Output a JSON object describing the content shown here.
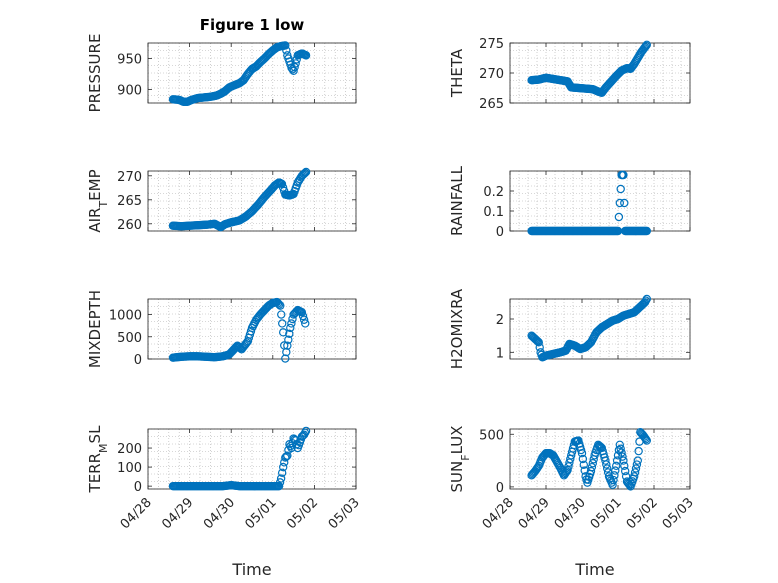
{
  "colors": {
    "marker": "#0072BD",
    "grid": "#b0b0b0",
    "axis": "#262626"
  },
  "figure_title": "Figure 1 low",
  "x_axis_title": "Time",
  "chart_data": [
    {
      "type": "scatter",
      "ylabel": "PRESSURE",
      "ylim": [
        878,
        975
      ],
      "yticks": [
        "900",
        "950"
      ],
      "ytick_values": [
        900,
        950
      ],
      "xlim": [
        "04/28",
        "05/03"
      ],
      "xticks": [
        "04/28",
        "04/29",
        "04/30",
        "05/01",
        "05/02",
        "05/03"
      ],
      "grid": true,
      "points": [
        [
          0.6,
          884
        ],
        [
          0.75,
          883
        ],
        [
          0.85,
          880
        ],
        [
          0.95,
          880
        ],
        [
          1.05,
          883
        ],
        [
          1.2,
          886
        ],
        [
          1.35,
          887
        ],
        [
          1.5,
          888
        ],
        [
          1.65,
          890
        ],
        [
          1.75,
          893
        ],
        [
          1.85,
          897
        ],
        [
          1.95,
          903
        ],
        [
          2.05,
          906
        ],
        [
          2.2,
          910
        ],
        [
          2.3,
          915
        ],
        [
          2.4,
          925
        ],
        [
          2.5,
          933
        ],
        [
          2.6,
          937
        ],
        [
          2.7,
          944
        ],
        [
          2.8,
          950
        ],
        [
          2.9,
          957
        ],
        [
          3.0,
          963
        ],
        [
          3.1,
          968
        ],
        [
          3.2,
          970
        ],
        [
          3.3,
          971
        ],
        [
          3.35,
          955
        ],
        [
          3.4,
          945
        ],
        [
          3.45,
          935
        ],
        [
          3.5,
          930
        ],
        [
          3.55,
          942
        ],
        [
          3.6,
          955
        ],
        [
          3.7,
          958
        ],
        [
          3.8,
          955
        ]
      ]
    },
    {
      "type": "scatter",
      "ylabel": "THETA",
      "ylim": [
        265,
        275
      ],
      "yticks": [
        "265",
        "270",
        "275"
      ],
      "ytick_values": [
        265,
        270,
        275
      ],
      "xlim": [
        "04/28",
        "05/03"
      ],
      "xticks": [
        "04/28",
        "04/29",
        "04/30",
        "05/01",
        "05/02",
        "05/03"
      ],
      "grid": true,
      "points": [
        [
          0.6,
          268.8
        ],
        [
          0.8,
          268.9
        ],
        [
          1.0,
          269.2
        ],
        [
          1.2,
          269.0
        ],
        [
          1.4,
          268.8
        ],
        [
          1.6,
          268.6
        ],
        [
          1.7,
          267.6
        ],
        [
          1.9,
          267.5
        ],
        [
          2.1,
          267.4
        ],
        [
          2.3,
          267.3
        ],
        [
          2.45,
          266.9
        ],
        [
          2.55,
          266.7
        ],
        [
          2.65,
          267.5
        ],
        [
          2.8,
          268.5
        ],
        [
          2.95,
          269.5
        ],
        [
          3.1,
          270.4
        ],
        [
          3.25,
          270.8
        ],
        [
          3.35,
          270.7
        ],
        [
          3.45,
          271.5
        ],
        [
          3.55,
          272.5
        ],
        [
          3.65,
          273.5
        ],
        [
          3.75,
          274.3
        ],
        [
          3.8,
          274.7
        ]
      ]
    },
    {
      "type": "scatter",
      "ylabel": "AIR_TEMP",
      "ylim": [
        258.5,
        271
      ],
      "yticks": [
        "260",
        "265",
        "270"
      ],
      "ytick_values": [
        260,
        265,
        270
      ],
      "xlim": [
        "04/28",
        "05/03"
      ],
      "xticks": [
        "04/28",
        "04/29",
        "04/30",
        "05/01",
        "05/02",
        "05/03"
      ],
      "grid": true,
      "points": [
        [
          0.6,
          259.6
        ],
        [
          0.8,
          259.5
        ],
        [
          1.0,
          259.6
        ],
        [
          1.2,
          259.7
        ],
        [
          1.4,
          259.8
        ],
        [
          1.6,
          260.0
        ],
        [
          1.75,
          259.3
        ],
        [
          1.85,
          259.9
        ],
        [
          2.0,
          260.3
        ],
        [
          2.2,
          260.7
        ],
        [
          2.35,
          261.5
        ],
        [
          2.5,
          262.6
        ],
        [
          2.65,
          264.0
        ],
        [
          2.8,
          265.6
        ],
        [
          2.95,
          267.0
        ],
        [
          3.05,
          268.0
        ],
        [
          3.15,
          268.6
        ],
        [
          3.22,
          268.3
        ],
        [
          3.3,
          266.1
        ],
        [
          3.4,
          265.9
        ],
        [
          3.5,
          266.2
        ],
        [
          3.6,
          268.6
        ],
        [
          3.7,
          270.0
        ],
        [
          3.8,
          270.8
        ]
      ]
    },
    {
      "type": "scatter",
      "ylabel": "RAINFALL",
      "ylim": [
        0,
        0.3
      ],
      "yticks": [
        "0",
        "0.1",
        "0.2"
      ],
      "ytick_values": [
        0,
        0.1,
        0.2
      ],
      "xlim": [
        "04/28",
        "05/03"
      ],
      "xticks": [
        "04/28",
        "04/29",
        "04/30",
        "05/01",
        "05/02",
        "05/03"
      ],
      "grid": true,
      "points": [
        [
          0.6,
          0
        ],
        [
          0.8,
          0
        ],
        [
          1.0,
          0
        ],
        [
          1.2,
          0
        ],
        [
          1.4,
          0
        ],
        [
          1.6,
          0
        ],
        [
          1.8,
          0
        ],
        [
          2.0,
          0
        ],
        [
          2.2,
          0
        ],
        [
          2.4,
          0
        ],
        [
          2.6,
          0
        ],
        [
          2.8,
          0
        ],
        [
          3.0,
          0
        ],
        [
          3.1,
          0.28
        ],
        [
          3.15,
          0.28
        ],
        [
          3.2,
          0
        ],
        [
          3.4,
          0
        ],
        [
          3.6,
          0
        ],
        [
          3.8,
          0
        ]
      ]
    },
    {
      "type": "scatter",
      "ylabel": "MIXDEPTH",
      "ylim": [
        0,
        1350
      ],
      "yticks": [
        "0",
        "500",
        "1000"
      ],
      "ytick_values": [
        0,
        500,
        1000
      ],
      "xlim": [
        "04/28",
        "05/03"
      ],
      "xticks": [
        "04/28",
        "04/29",
        "04/30",
        "05/01",
        "05/02",
        "05/03"
      ],
      "grid": true,
      "points": [
        [
          0.6,
          30
        ],
        [
          0.8,
          50
        ],
        [
          1.0,
          60
        ],
        [
          1.2,
          60
        ],
        [
          1.4,
          50
        ],
        [
          1.6,
          40
        ],
        [
          1.8,
          60
        ],
        [
          1.95,
          100
        ],
        [
          2.05,
          200
        ],
        [
          2.15,
          300
        ],
        [
          2.25,
          220
        ],
        [
          2.4,
          400
        ],
        [
          2.5,
          700
        ],
        [
          2.6,
          880
        ],
        [
          2.7,
          1000
        ],
        [
          2.8,
          1100
        ],
        [
          2.9,
          1200
        ],
        [
          3.0,
          1260
        ],
        [
          3.1,
          1280
        ],
        [
          3.18,
          1200
        ],
        [
          3.25,
          600
        ],
        [
          3.3,
          10
        ],
        [
          3.35,
          300
        ],
        [
          3.42,
          700
        ],
        [
          3.5,
          1000
        ],
        [
          3.6,
          1100
        ],
        [
          3.7,
          1050
        ],
        [
          3.78,
          800
        ]
      ]
    },
    {
      "type": "scatter",
      "ylabel": "H2OMIXRA",
      "ylim": [
        0.8,
        2.6
      ],
      "yticks": [
        "1",
        "2"
      ],
      "ytick_values": [
        1,
        2
      ],
      "xlim": [
        "04/28",
        "05/03"
      ],
      "xticks": [
        "04/28",
        "04/29",
        "04/30",
        "05/01",
        "05/02",
        "05/03"
      ],
      "grid": true,
      "points": [
        [
          0.6,
          1.5
        ],
        [
          0.7,
          1.4
        ],
        [
          0.8,
          1.3
        ],
        [
          0.85,
          1.0
        ],
        [
          0.9,
          0.85
        ],
        [
          1.0,
          0.9
        ],
        [
          1.2,
          0.95
        ],
        [
          1.4,
          1.0
        ],
        [
          1.55,
          1.05
        ],
        [
          1.65,
          1.25
        ],
        [
          1.8,
          1.2
        ],
        [
          1.95,
          1.1
        ],
        [
          2.1,
          1.15
        ],
        [
          2.25,
          1.3
        ],
        [
          2.4,
          1.6
        ],
        [
          2.55,
          1.75
        ],
        [
          2.7,
          1.85
        ],
        [
          2.85,
          1.95
        ],
        [
          3.0,
          2.0
        ],
        [
          3.15,
          2.1
        ],
        [
          3.3,
          2.15
        ],
        [
          3.45,
          2.2
        ],
        [
          3.6,
          2.35
        ],
        [
          3.75,
          2.5
        ],
        [
          3.8,
          2.6
        ]
      ]
    },
    {
      "type": "scatter",
      "ylabel": "TERR_MSL",
      "ylim": [
        -15,
        300
      ],
      "yticks": [
        "0",
        "100",
        "200"
      ],
      "ytick_values": [
        0,
        100,
        200
      ],
      "xlim": [
        "04/28",
        "05/03"
      ],
      "xticks": [
        "04/28",
        "04/29",
        "04/30",
        "05/01",
        "05/02",
        "05/03"
      ],
      "grid": true,
      "points": [
        [
          0.6,
          0
        ],
        [
          0.8,
          0
        ],
        [
          1.0,
          0
        ],
        [
          1.2,
          0
        ],
        [
          1.4,
          0
        ],
        [
          1.6,
          0
        ],
        [
          1.8,
          0
        ],
        [
          2.0,
          5
        ],
        [
          2.2,
          0
        ],
        [
          2.4,
          0
        ],
        [
          2.6,
          0
        ],
        [
          2.8,
          0
        ],
        [
          3.0,
          0
        ],
        [
          3.15,
          0
        ],
        [
          3.2,
          40
        ],
        [
          3.25,
          100
        ],
        [
          3.3,
          150
        ],
        [
          3.35,
          160
        ],
        [
          3.4,
          220
        ],
        [
          3.45,
          200
        ],
        [
          3.5,
          250
        ],
        [
          3.55,
          240
        ],
        [
          3.6,
          200
        ],
        [
          3.65,
          230
        ],
        [
          3.7,
          260
        ],
        [
          3.75,
          270
        ],
        [
          3.8,
          290
        ]
      ]
    },
    {
      "type": "scatter",
      "ylabel": "SUN_FLUX",
      "ylim": [
        -20,
        550
      ],
      "yticks": [
        "0",
        "500"
      ],
      "ytick_values": [
        0,
        500
      ],
      "xlim": [
        "04/28",
        "05/03"
      ],
      "xticks": [
        "04/28",
        "04/29",
        "04/30",
        "05/01",
        "05/02",
        "05/03"
      ],
      "grid": true,
      "points": [
        [
          0.6,
          110
        ],
        [
          0.7,
          150
        ],
        [
          0.8,
          200
        ],
        [
          0.9,
          280
        ],
        [
          1.0,
          320
        ],
        [
          1.1,
          320
        ],
        [
          1.2,
          300
        ],
        [
          1.3,
          240
        ],
        [
          1.4,
          180
        ],
        [
          1.5,
          110
        ],
        [
          1.6,
          160
        ],
        [
          1.7,
          300
        ],
        [
          1.8,
          430
        ],
        [
          1.9,
          440
        ],
        [
          2.0,
          320
        ],
        [
          2.1,
          100
        ],
        [
          2.15,
          40
        ],
        [
          2.25,
          150
        ],
        [
          2.35,
          300
        ],
        [
          2.45,
          400
        ],
        [
          2.55,
          370
        ],
        [
          2.65,
          250
        ],
        [
          2.75,
          100
        ],
        [
          2.85,
          20
        ],
        [
          2.95,
          200
        ],
        [
          3.05,
          400
        ],
        [
          3.15,
          250
        ],
        [
          3.25,
          50
        ],
        [
          3.35,
          5
        ],
        [
          3.45,
          100
        ],
        [
          3.55,
          250
        ],
        [
          3.62,
          520
        ],
        [
          3.7,
          490
        ],
        [
          3.8,
          440
        ]
      ]
    }
  ]
}
